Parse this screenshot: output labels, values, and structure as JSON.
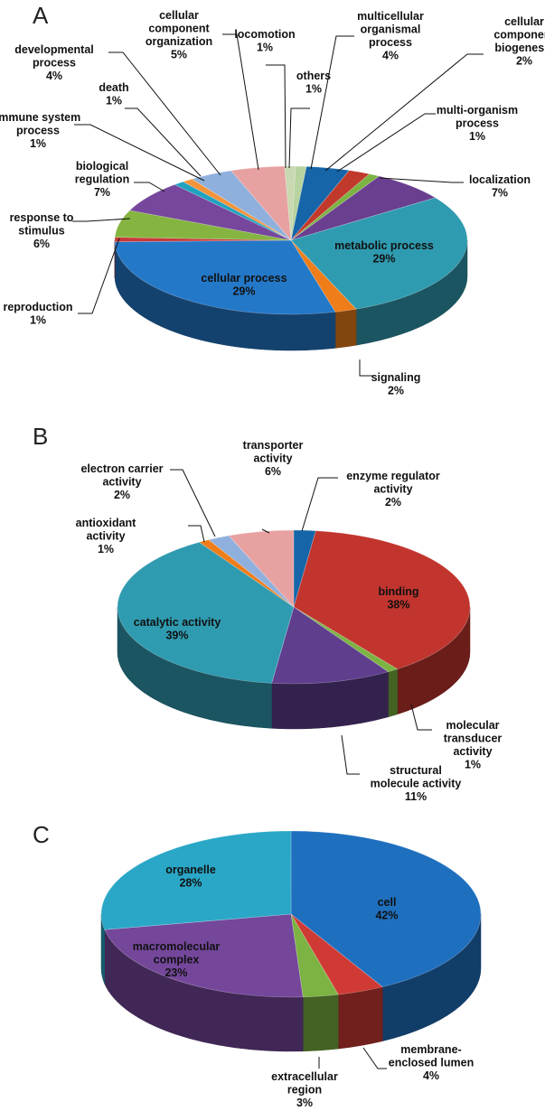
{
  "chart_data": [
    {
      "type": "pie",
      "panel_label": "A",
      "slices": [
        {
          "label": "others",
          "value": 1,
          "color": "#b7d3a0"
        },
        {
          "label": "multicellular organismal process",
          "value": 4,
          "color": "#1565a8"
        },
        {
          "label": "cellular component biogenesis",
          "value": 2,
          "color": "#c0392b"
        },
        {
          "label": "multi-organism process",
          "value": 1,
          "color": "#7cb342"
        },
        {
          "label": "localization",
          "value": 7,
          "color": "#6a3f8f"
        },
        {
          "label": "metabolic process",
          "value": 29,
          "color": "#2f9bb0"
        },
        {
          "label": "signaling",
          "value": 2,
          "color": "#ef7d1a"
        },
        {
          "label": "cellular process",
          "value": 29,
          "color": "#2478c8"
        },
        {
          "label": "reproduction",
          "value": 1,
          "color": "#c73a3a"
        },
        {
          "label": "response to stimulus",
          "value": 6,
          "color": "#85b540"
        },
        {
          "label": "biological regulation",
          "value": 7,
          "color": "#76479c"
        },
        {
          "label": "immune system process",
          "value": 1,
          "color": "#21a3bf"
        },
        {
          "label": "death",
          "value": 1,
          "color": "#f4943a"
        },
        {
          "label": "developmental process",
          "value": 4,
          "color": "#8fb0dc"
        },
        {
          "label": "cellular component organization",
          "value": 5,
          "color": "#e8a1a1"
        },
        {
          "label": "locomotion",
          "value": 1,
          "color": "#c8d8b0"
        }
      ],
      "display_labels": [
        {
          "lines": [
            "locomotion"
          ],
          "pct": "1%"
        },
        {
          "lines": [
            "others"
          ],
          "pct": "1%"
        },
        {
          "lines": [
            "multicellular",
            "organismal",
            "process"
          ],
          "pct": "4%"
        },
        {
          "lines": [
            "cellular",
            "component",
            "biogenesis"
          ],
          "pct": "2%"
        },
        {
          "lines": [
            "multi-organism",
            "process"
          ],
          "pct": "1%"
        },
        {
          "lines": [
            "localization"
          ],
          "pct": "7%"
        },
        {
          "lines": [
            "metabolic process"
          ],
          "pct": "29%"
        },
        {
          "lines": [
            "signaling"
          ],
          "pct": "2%"
        },
        {
          "lines": [
            "cellular process"
          ],
          "pct": "29%"
        },
        {
          "lines": [
            "reproduction"
          ],
          "pct": "1%"
        },
        {
          "lines": [
            "response to",
            "stimulus"
          ],
          "pct": "6%"
        },
        {
          "lines": [
            "biological",
            "regulation"
          ],
          "pct": "7%"
        },
        {
          "lines": [
            "immune system",
            "process"
          ],
          "pct": "1%"
        },
        {
          "lines": [
            "death"
          ],
          "pct": "1%"
        },
        {
          "lines": [
            "developmental",
            "process"
          ],
          "pct": "4%"
        },
        {
          "lines": [
            "cellular",
            "component",
            "organization"
          ],
          "pct": "5%"
        }
      ]
    },
    {
      "type": "pie",
      "panel_label": "B",
      "slices": [
        {
          "label": "enzyme regulator activity",
          "value": 2,
          "color": "#1565a8"
        },
        {
          "label": "binding",
          "value": 38,
          "color": "#c1352e"
        },
        {
          "label": "molecular transducer activity",
          "value": 1,
          "color": "#7cb342"
        },
        {
          "label": "structural molecule activity",
          "value": 11,
          "color": "#5f3e8e"
        },
        {
          "label": "catalytic activity",
          "value": 39,
          "color": "#2f9bb0"
        },
        {
          "label": "antioxidant activity",
          "value": 1,
          "color": "#ef7d1a"
        },
        {
          "label": "electron carrier activity",
          "value": 2,
          "color": "#8fb0dc"
        },
        {
          "label": "transporter activity",
          "value": 6,
          "color": "#e8a1a1"
        }
      ],
      "display_labels": [
        {
          "lines": [
            "transporter",
            "activity"
          ],
          "pct": "6%"
        },
        {
          "lines": [
            "enzyme regulator",
            "activity"
          ],
          "pct": "2%"
        },
        {
          "lines": [
            "electron carrier",
            "activity"
          ],
          "pct": "2%"
        },
        {
          "lines": [
            "antioxidant",
            "activity"
          ],
          "pct": "1%"
        },
        {
          "lines": [
            "binding"
          ],
          "pct": "38%"
        },
        {
          "lines": [
            "catalytic activity"
          ],
          "pct": "39%"
        },
        {
          "lines": [
            "molecular",
            "transducer",
            "activity"
          ],
          "pct": "1%"
        },
        {
          "lines": [
            "structural",
            "molecule activity"
          ],
          "pct": "11%"
        }
      ]
    },
    {
      "type": "pie",
      "panel_label": "C",
      "slices": [
        {
          "label": "cell",
          "value": 42,
          "color": "#1f6fbf"
        },
        {
          "label": "membrane-enclosed lumen",
          "value": 4,
          "color": "#d03a35"
        },
        {
          "label": "extracellular region",
          "value": 3,
          "color": "#7cb342"
        },
        {
          "label": "macromolecular complex",
          "value": 23,
          "color": "#74479b"
        },
        {
          "label": "organelle",
          "value": 28,
          "color": "#2aa7c7"
        }
      ],
      "display_labels": [
        {
          "lines": [
            "organelle"
          ],
          "pct": "28%"
        },
        {
          "lines": [
            "cell"
          ],
          "pct": "42%"
        },
        {
          "lines": [
            "macromolecular",
            "complex"
          ],
          "pct": "23%"
        },
        {
          "lines": [
            "membrane-",
            "enclosed lumen"
          ],
          "pct": "4%"
        },
        {
          "lines": [
            "extracellular",
            "region"
          ],
          "pct": "3%"
        }
      ]
    }
  ]
}
